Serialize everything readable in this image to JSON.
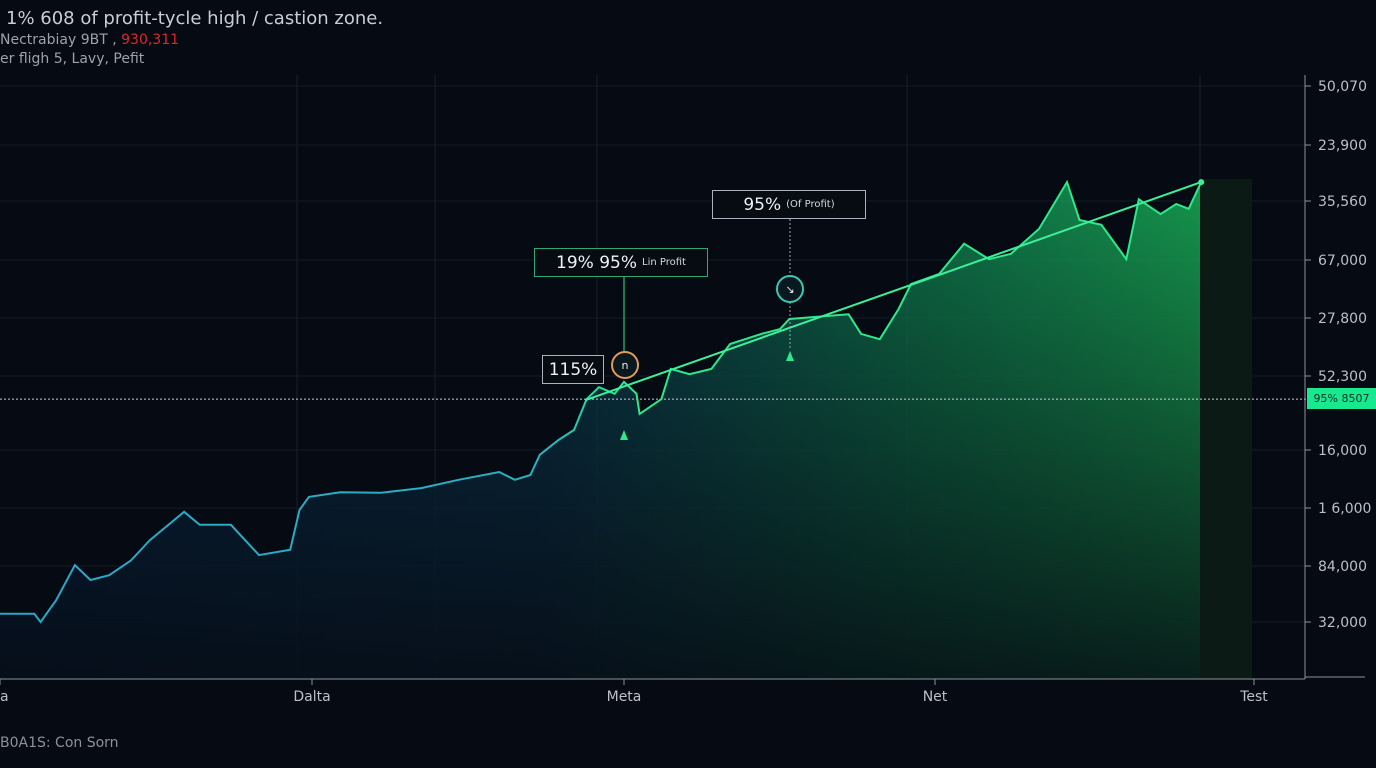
{
  "header": {
    "title": "1% 608 of profit-tycle high / castion zone.",
    "line2_prefix": "Nectrabiay 9BT ,",
    "line2_value": "930,311",
    "line3": "er fligh 5, Lavy, Pefit"
  },
  "footer": {
    "text": "B0A1S: Con Sorn"
  },
  "colors": {
    "background": "#060a12",
    "early_line": "#2aa6c8",
    "late_line": "#2ee88a",
    "trend_line": "#3cf09a",
    "badge": "#18e890",
    "highlight_value": "#e0262b"
  },
  "annotations": {
    "a115": {
      "label": "115%"
    },
    "a19": {
      "label": "19% 95%",
      "sub": "Lin Profit"
    },
    "a95": {
      "label": "95%",
      "sub": "(Of Profit)"
    },
    "marker1_icon": "n",
    "marker2_icon": "arrow-icon"
  },
  "price_badge": "95% 8507",
  "chart_data": {
    "type": "area",
    "title": "1% 608 of profit-tycle high / castion zone.",
    "x_tick_labels": [
      "a",
      "Dalta",
      "Meta",
      "Net",
      "Test"
    ],
    "x_ticks": [
      0,
      1,
      2,
      3,
      4
    ],
    "y_tick_labels": [
      "50,070",
      "23,900",
      "35,560",
      "67,000",
      "27,800",
      "52,300",
      "16,000",
      "1 6,000",
      "84,000",
      "32,000"
    ],
    "ylim": [
      0,
      100
    ],
    "xlim": [
      0,
      4.4
    ],
    "grid": true,
    "series": [
      {
        "x": [
          0,
          0.11,
          0.13,
          0.18,
          0.24,
          0.29,
          0.35,
          0.42,
          0.48,
          0.59,
          0.64,
          0.74,
          0.83,
          0.93,
          0.96,
          0.99,
          1.09,
          1.22,
          1.35,
          1.47,
          1.6,
          1.65,
          1.7,
          1.73,
          1.79,
          1.84,
          1.88,
          1.92,
          1.97,
          2.0,
          2.04,
          2.05,
          2.12,
          2.15,
          2.21,
          2.28,
          2.34,
          2.44,
          2.5,
          2.53,
          2.6,
          2.72,
          2.76,
          2.82,
          2.88,
          2.92,
          3.01,
          3.09,
          3.17,
          3.24,
          3.33,
          3.42,
          3.46,
          3.53,
          3.61,
          3.65,
          3.72,
          3.77,
          3.81,
          3.85
        ],
        "y": [
          11,
          11,
          9.6,
          13.3,
          19.2,
          16.7,
          17.5,
          20,
          23.4,
          28.2,
          26,
          26,
          20.9,
          21.8,
          28.5,
          30.7,
          31.5,
          31.4,
          32.2,
          33.6,
          34.9,
          33.6,
          34.4,
          37.8,
          40.3,
          42,
          47.2,
          49.2,
          48.1,
          50.1,
          48.1,
          44.7,
          47.2,
          52.3,
          51.4,
          52.3,
          56.5,
          58.2,
          59,
          60.7,
          61,
          61.5,
          58.2,
          57.3,
          62.4,
          66.6,
          68.3,
          73.4,
          70.8,
          71.7,
          75.9,
          83.8,
          77.4,
          76.6,
          70.8,
          80.9,
          78.4,
          80.1,
          79.3,
          83.8
        ]
      }
    ],
    "trend_line": {
      "x": [
        1.875,
        3.85
      ],
      "y": [
        47,
        83.8
      ]
    },
    "reference_line": {
      "y": 47.2,
      "label": "95% 8507"
    },
    "color_split_x": 1.92
  }
}
